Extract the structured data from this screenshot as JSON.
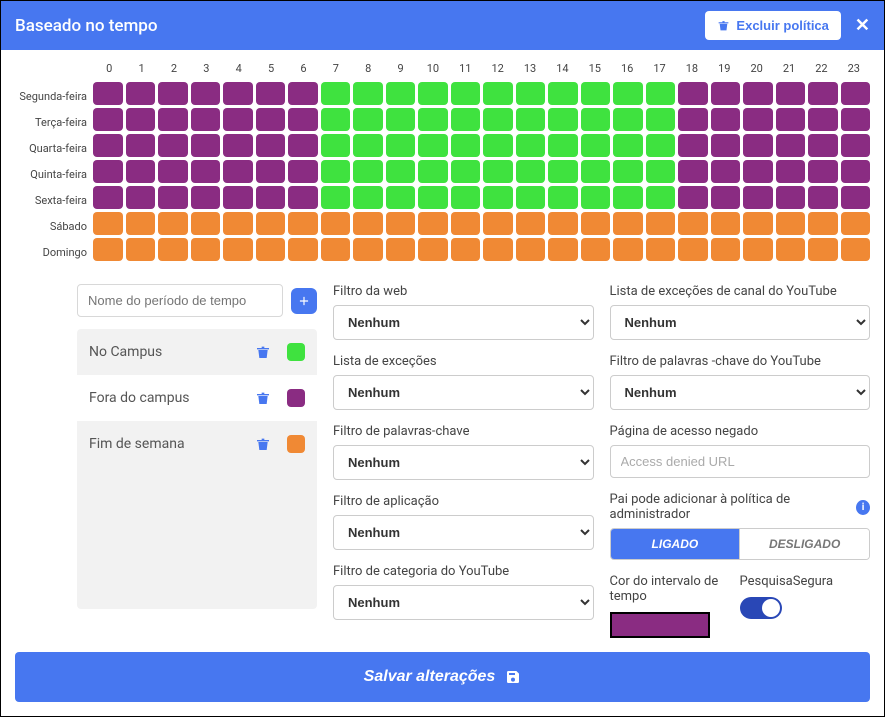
{
  "header": {
    "title": "Baseado no tempo",
    "exclude_label": "Excluir política"
  },
  "schedule": {
    "hours": [
      "0",
      "1",
      "2",
      "3",
      "4",
      "5",
      "6",
      "7",
      "8",
      "9",
      "10",
      "11",
      "12",
      "13",
      "14",
      "15",
      "16",
      "17",
      "18",
      "19",
      "20",
      "21",
      "22",
      "23"
    ],
    "days": [
      "Segunda-feira",
      "Terça-feira",
      "Quarta-feira",
      "Quinta-feira",
      "Sexta-feira",
      "Sábado",
      "Domingo"
    ],
    "grid": [
      [
        1,
        1,
        1,
        1,
        1,
        1,
        1,
        0,
        0,
        0,
        0,
        0,
        0,
        0,
        0,
        0,
        0,
        0,
        1,
        1,
        1,
        1,
        1,
        1
      ],
      [
        1,
        1,
        1,
        1,
        1,
        1,
        1,
        0,
        0,
        0,
        0,
        0,
        0,
        0,
        0,
        0,
        0,
        0,
        1,
        1,
        1,
        1,
        1,
        1
      ],
      [
        1,
        1,
        1,
        1,
        1,
        1,
        1,
        0,
        0,
        0,
        0,
        0,
        0,
        0,
        0,
        0,
        0,
        0,
        1,
        1,
        1,
        1,
        1,
        1
      ],
      [
        1,
        1,
        1,
        1,
        1,
        1,
        1,
        0,
        0,
        0,
        0,
        0,
        0,
        0,
        0,
        0,
        0,
        0,
        1,
        1,
        1,
        1,
        1,
        1
      ],
      [
        1,
        1,
        1,
        1,
        1,
        1,
        1,
        0,
        0,
        0,
        0,
        0,
        0,
        0,
        0,
        0,
        0,
        0,
        1,
        1,
        1,
        1,
        1,
        1
      ],
      [
        2,
        2,
        2,
        2,
        2,
        2,
        2,
        2,
        2,
        2,
        2,
        2,
        2,
        2,
        2,
        2,
        2,
        2,
        2,
        2,
        2,
        2,
        2,
        2
      ],
      [
        2,
        2,
        2,
        2,
        2,
        2,
        2,
        2,
        2,
        2,
        2,
        2,
        2,
        2,
        2,
        2,
        2,
        2,
        2,
        2,
        2,
        2,
        2,
        2
      ]
    ],
    "colors": {
      "0": "#3fe23f",
      "1": "#8a2c82",
      "2": "#f08934"
    }
  },
  "periods": {
    "input_placeholder": "Nome do período de tempo",
    "items": [
      {
        "name": "No Campus",
        "color": "#3fe23f"
      },
      {
        "name": "Fora do campus",
        "color": "#8a2c82"
      },
      {
        "name": "Fim de semana",
        "color": "#f08934"
      }
    ]
  },
  "filters": {
    "web": {
      "label": "Filtro da web",
      "value": "Nenhum"
    },
    "exceptions": {
      "label": "Lista de exceções",
      "value": "Nenhum"
    },
    "keywords": {
      "label": "Filtro de palavras-chave",
      "value": "Nenhum"
    },
    "app": {
      "label": "Filtro de aplicação",
      "value": "Nenhum"
    },
    "yt_cat": {
      "label": "Filtro de categoria do YouTube",
      "value": "Nenhum"
    },
    "yt_channel": {
      "label": "Lista de exceções de canal do YouTube",
      "value": "Nenhum"
    },
    "yt_keywords": {
      "label": "Filtro de palavras -chave do YouTube",
      "value": "Nenhum"
    },
    "denied_page": {
      "label": "Página de acesso negado",
      "placeholder": "Access denied URL"
    },
    "parent_add": {
      "label": "Pai pode adicionar à política de administrador",
      "on": "LIGADO",
      "off": "DESLIGADO"
    },
    "color_label": "Cor do intervalo de tempo",
    "color_value": "#8a2c82",
    "safesearch_label": "PesquisaSegura"
  },
  "footer": {
    "save": "Salvar alterações"
  },
  "style": {
    "accent": "#4777f0",
    "accent_dark": "#2947b6"
  }
}
